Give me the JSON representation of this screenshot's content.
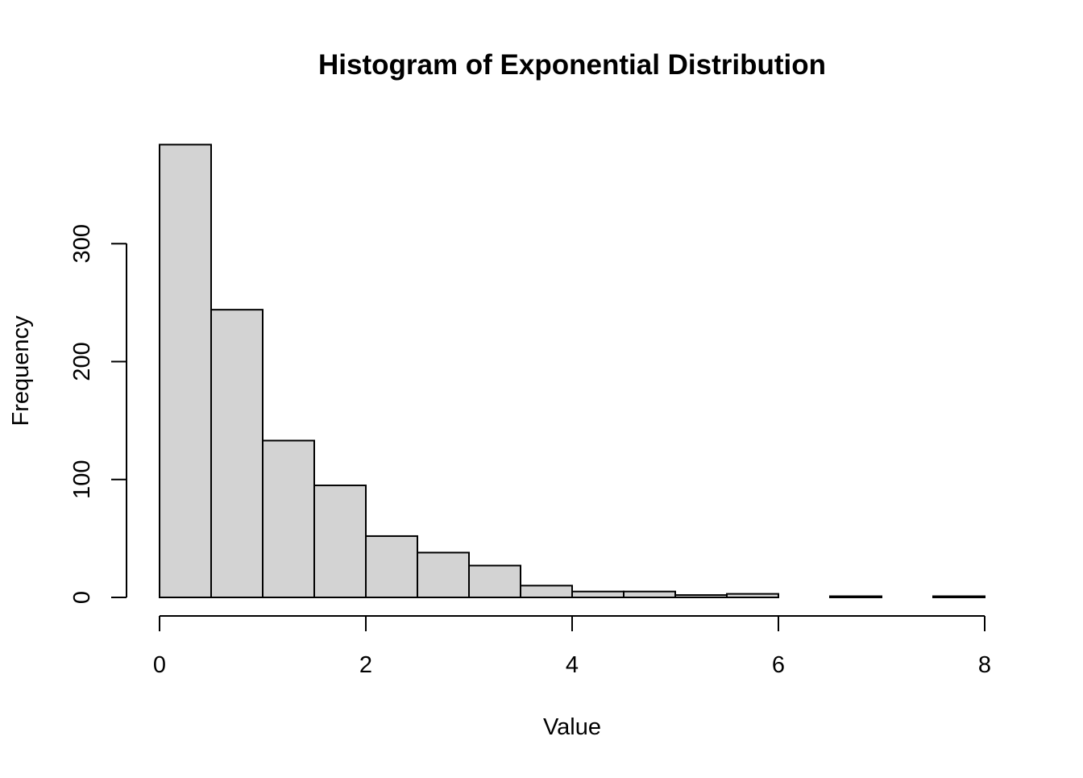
{
  "chart_data": {
    "type": "bar",
    "title": "Histogram of Exponential Distribution",
    "xlabel": "Value",
    "ylabel": "Frequency",
    "bin_edges": [
      0,
      0.5,
      1,
      1.5,
      2,
      2.5,
      3,
      3.5,
      4,
      4.5,
      5,
      5.5,
      6,
      6.5,
      7,
      7.5,
      8
    ],
    "values": [
      384,
      244,
      133,
      95,
      52,
      38,
      27,
      10,
      5,
      5,
      2,
      3,
      0,
      1,
      0,
      1
    ],
    "x_ticks": [
      0,
      2,
      4,
      6,
      8
    ],
    "y_ticks": [
      0,
      100,
      200,
      300
    ],
    "xlim": [
      0,
      8
    ],
    "ylim": [
      0,
      384
    ],
    "grid": false,
    "bar_color": "#D3D3D3",
    "border_color": "#000000"
  }
}
